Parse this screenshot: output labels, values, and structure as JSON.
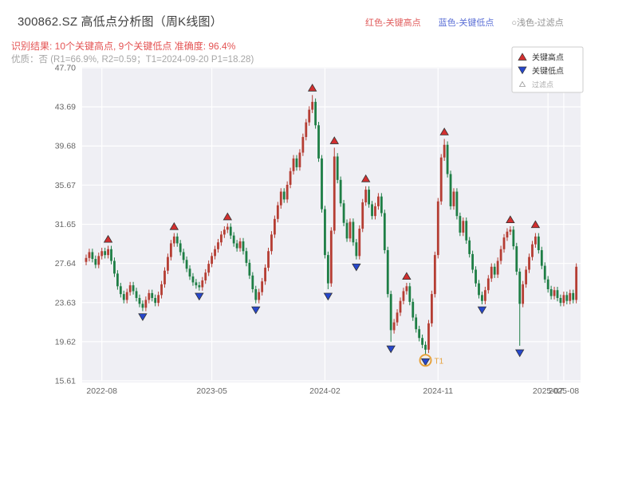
{
  "header": {
    "title": "300862.SZ 高低点分析图（周K线图）",
    "legend_top": [
      {
        "label": "红色-关键高点",
        "color": "#e05c5c"
      },
      {
        "label": "蓝色-关键低点",
        "color": "#5b6fd6"
      },
      {
        "label": "○浅色-过滤点",
        "color": "#909090"
      }
    ],
    "result_line": "识别结果: 10个关键高点, 9个关键低点  准确度: 96.4%",
    "quality_line": "优质：否 (R1=66.9%, R2=0.59；T1=2024-09-20 P1=18.28)"
  },
  "chart_data": {
    "type": "candlestick",
    "title": "300862.SZ 高低点分析图（周K线图）",
    "period": "weekly",
    "y_min": 15.61,
    "y_max": 47.7,
    "y_ticks": [
      "47.70",
      "43.69",
      "39.68",
      "35.67",
      "31.65",
      "27.64",
      "23.63",
      "19.62",
      "15.61"
    ],
    "x_ticks": [
      {
        "label": "2022-08",
        "index": 5
      },
      {
        "label": "2023-05",
        "index": 40
      },
      {
        "label": "2024-02",
        "index": 76
      },
      {
        "label": "2024-11",
        "index": 112
      },
      {
        "label": "2025-07",
        "index": 147
      },
      {
        "label": "2025-08",
        "index": 152
      }
    ],
    "first_open": 27.8,
    "default_wick": 0.35,
    "closes": [
      28.2,
      28.8,
      28.1,
      27.5,
      28.4,
      28.9,
      28.5,
      29.1,
      27.9,
      26.6,
      25.3,
      24.5,
      23.9,
      24.7,
      25.4,
      24.8,
      24.1,
      23.5,
      23.1,
      23.9,
      24.6,
      24.1,
      23.6,
      24.4,
      25.5,
      26.9,
      28.3,
      29.7,
      30.4,
      29.7,
      28.8,
      28.0,
      27.1,
      26.3,
      25.7,
      25.4,
      25.2,
      25.9,
      26.7,
      27.6,
      28.4,
      29.1,
      29.8,
      30.6,
      31.1,
      31.4,
      30.5,
      29.7,
      29.2,
      29.9,
      28.9,
      27.7,
      26.4,
      25.0,
      23.9,
      24.7,
      25.8,
      27.2,
      28.9,
      30.6,
      32.2,
      33.6,
      35.0,
      34.2,
      35.7,
      37.1,
      38.4,
      37.5,
      39.0,
      40.6,
      42.1,
      43.4,
      44.2,
      41.8,
      38.4,
      33.2,
      28.5,
      25.6,
      31.0,
      38.6,
      36.2,
      33.8,
      31.8,
      30.2,
      31.9,
      29.8,
      28.4,
      31.2,
      33.9,
      35.2,
      33.7,
      32.5,
      33.5,
      34.5,
      32.8,
      29.0,
      24.5,
      20.8,
      21.6,
      22.6,
      23.8,
      24.8,
      25.3,
      23.7,
      22.1,
      20.9,
      20.0,
      19.3,
      18.8,
      21.5,
      24.5,
      28.5,
      34.0,
      38.5,
      39.8,
      36.8,
      33.5,
      35.0,
      32.5,
      30.8,
      32.0,
      30.0,
      28.6,
      27.0,
      25.6,
      24.4,
      23.8,
      24.9,
      26.1,
      27.3,
      26.5,
      27.9,
      29.1,
      30.3,
      30.9,
      31.1,
      29.4,
      26.8,
      23.5,
      25.5,
      27.0,
      28.3,
      29.6,
      30.4,
      29.0,
      27.4,
      26.0,
      25.0,
      24.3,
      24.9,
      24.1,
      23.6,
      24.4,
      23.8,
      24.6,
      23.9,
      27.3
    ],
    "wick_overrides": {
      "72": {
        "high": 44.9
      },
      "77": {
        "low": 25.0
      },
      "79": {
        "high": 39.5
      },
      "97": {
        "low": 19.6
      },
      "108": {
        "low": 18.28
      },
      "114": {
        "high": 40.4
      },
      "138": {
        "low": 19.2
      }
    },
    "key_highs": [
      {
        "index": 7,
        "price": 29.4
      },
      {
        "index": 28,
        "price": 30.7
      },
      {
        "index": 45,
        "price": 31.7
      },
      {
        "index": 72,
        "price": 44.9
      },
      {
        "index": 79,
        "price": 39.5
      },
      {
        "index": 89,
        "price": 35.6
      },
      {
        "index": 102,
        "price": 25.6
      },
      {
        "index": 114,
        "price": 40.4
      },
      {
        "index": 135,
        "price": 31.4
      },
      {
        "index": 143,
        "price": 30.9
      }
    ],
    "key_lows": [
      {
        "index": 18,
        "price": 22.9
      },
      {
        "index": 36,
        "price": 25.0
      },
      {
        "index": 54,
        "price": 23.6
      },
      {
        "index": 77,
        "price": 25.0
      },
      {
        "index": 86,
        "price": 28.0
      },
      {
        "index": 97,
        "price": 19.6
      },
      {
        "index": 108,
        "price": 18.28
      },
      {
        "index": 126,
        "price": 23.6
      },
      {
        "index": 138,
        "price": 19.2
      }
    ],
    "t1": {
      "index": 108,
      "price": 18.28,
      "label": "T1",
      "date": "2024-09-20"
    },
    "legend_box": [
      {
        "marker": "up",
        "color": "#d32f2f",
        "label": "关键高点"
      },
      {
        "marker": "down",
        "color": "#2647cc",
        "label": "关键低点"
      },
      {
        "marker": "up-outline",
        "color": "#aaaaaa",
        "label": "过滤点"
      }
    ],
    "colors": {
      "up": "#b53d33",
      "down": "#1e7e45",
      "plot_bg": "#efeff4",
      "grid": "#ffffff",
      "marker_high": "#d32f2f",
      "marker_low": "#2647cc",
      "marker_edge": "#333333",
      "t1": "#e6a23c",
      "tick_text": "#666666"
    }
  }
}
